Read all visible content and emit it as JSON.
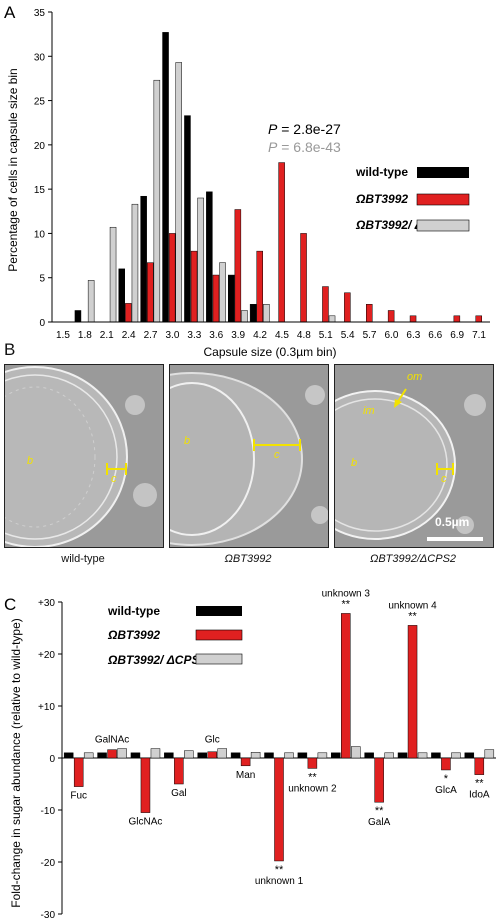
{
  "panels": {
    "a": "A",
    "b": "B",
    "c": "C"
  },
  "colors": {
    "wt": "#000000",
    "omega": "#e02020",
    "double": "#d0d0d0",
    "annot": "#f2e200",
    "pgray": "#999999"
  },
  "chart_data": [
    {
      "type": "bar",
      "ylabel": "Percentage of cells in capsule size bin",
      "xlabel": "Capsule size (0.3µm bin)",
      "ylim": [
        0,
        35
      ],
      "yticks": [
        0,
        5,
        10,
        15,
        20,
        25,
        30,
        35
      ],
      "x_ticklabels": [
        "1.5",
        "1.8",
        "2.1",
        "2.4",
        "2.7",
        "3.0",
        "3.3",
        "3.6",
        "3.9",
        "4.2",
        "4.5",
        "4.8",
        "5.1",
        "5.4",
        "5.7",
        "6.0",
        "6.3",
        "6.6",
        "6.9",
        "7.1"
      ],
      "categories": [
        1.5,
        1.8,
        2.1,
        2.4,
        2.7,
        3.0,
        3.3,
        3.6,
        3.9,
        4.2,
        4.5,
        4.8,
        5.1,
        5.4,
        5.7,
        6.0,
        6.3,
        6.6,
        6.9,
        7.1
      ],
      "series": [
        {
          "name": "wild-type",
          "values": [
            0,
            1.3,
            0,
            6,
            14.2,
            32.7,
            23.3,
            14.7,
            5.3,
            2,
            0,
            0,
            0,
            0,
            0,
            0,
            0,
            0,
            0,
            0
          ]
        },
        {
          "name": "ΩBT3992",
          "values": [
            0,
            0,
            0,
            2.1,
            6.7,
            10,
            8,
            5.3,
            12.7,
            8,
            18,
            10,
            4,
            3.3,
            2,
            1.3,
            0.7,
            0,
            0.7,
            0.7
          ]
        },
        {
          "name": "ΩBT3992/ ΔCPS2",
          "values": [
            0,
            4.7,
            10.7,
            13.3,
            27.3,
            29.3,
            14,
            6.7,
            1.3,
            2,
            0,
            0,
            0.7,
            0,
            0,
            0,
            0,
            0,
            0,
            0
          ]
        }
      ],
      "annotations": [
        {
          "label": "P",
          "text": " = 2.8e-27",
          "color": "#000000"
        },
        {
          "label": "P",
          "text": " = 6.8e-43",
          "color": "#999999"
        }
      ],
      "legend": "right"
    },
    {
      "type": "bar",
      "ylabel": "Fold-change in sugar abundance (relative to wild-type)",
      "ylim": [
        -30,
        30
      ],
      "yticks": [
        "+30",
        "+20",
        "+10",
        "0",
        "-10",
        "-20",
        "-30"
      ],
      "categories": [
        "Fuc",
        "GalNAc",
        "GlcNAc",
        "Gal",
        "Glc",
        "Man",
        "unknown 1",
        "unknown 2",
        "unknown 3",
        "GalA",
        "unknown 4",
        "GlcA",
        "IdoA"
      ],
      "series": [
        {
          "name": "wild-type",
          "values": [
            1,
            1,
            1,
            1,
            1,
            1,
            1,
            1,
            1,
            1,
            1,
            1,
            1
          ]
        },
        {
          "name": "ΩBT3992",
          "values": [
            -5.5,
            1.6,
            -10.5,
            -5,
            1.2,
            -1.5,
            -19.8,
            -2,
            27.8,
            -8.5,
            25.5,
            -2.3,
            -3.2
          ]
        },
        {
          "name": "ΩBT3992/ ΔCPS2",
          "values": [
            1,
            1.8,
            1.8,
            1.4,
            1.8,
            1.1,
            1,
            1,
            2.2,
            1,
            1,
            1,
            1.6
          ]
        }
      ],
      "significance": [
        "",
        "",
        "",
        "",
        "",
        "",
        "**",
        "**",
        "**",
        "**",
        "**",
        "*",
        "**"
      ],
      "legend": "top-left"
    }
  ],
  "micrographs": [
    {
      "caption": "wild-type",
      "labels": [
        "b",
        "c"
      ]
    },
    {
      "caption": "ΩBT3992",
      "labels": [
        "b",
        "c"
      ]
    },
    {
      "caption": "ΩBT3992/ΔCPS2",
      "labels": [
        "om",
        "im",
        "b",
        "c"
      ],
      "scalebar": "0.5µm"
    }
  ]
}
